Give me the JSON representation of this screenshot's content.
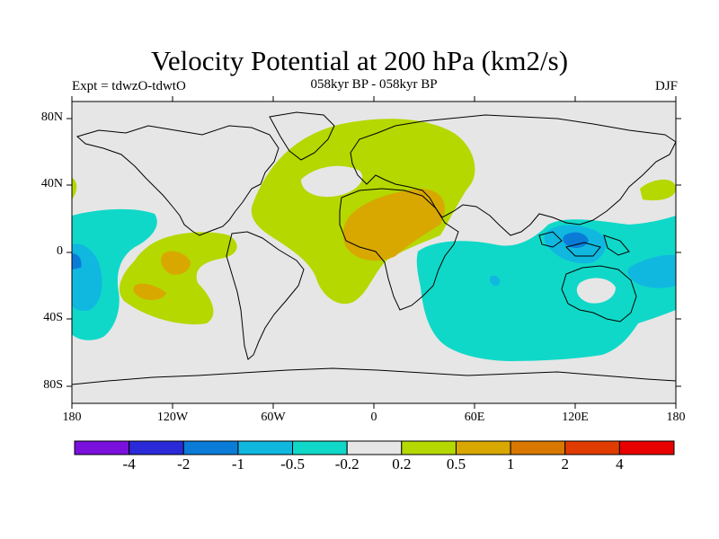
{
  "title": "Velocity Potential at 200 hPa (km2/s)",
  "subtitle_left": "Expt = tdwzO-tdwtO",
  "subtitle_center": "058kyr BP - 058kyr BP",
  "subtitle_right": "DJF",
  "map": {
    "lat_labels": [
      "80N",
      "40N",
      "0",
      "40S",
      "80S"
    ],
    "lon_labels": [
      "180",
      "120W",
      "60W",
      "0",
      "60E",
      "120E",
      "180"
    ]
  },
  "colorbar": {
    "labels": [
      "-4",
      "-2",
      "-1",
      "-0.5",
      "-0.2",
      "0.2",
      "0.5",
      "1",
      "2",
      "4"
    ],
    "colors": [
      "#7a10dc",
      "#2a2ad8",
      "#0a7cd8",
      "#10b8e0",
      "#10d8c8",
      "#e6e6e6",
      "#b4d800",
      "#d8a800",
      "#d87800",
      "#e03c00",
      "#e80000"
    ]
  },
  "legend_colors": {
    "neutral": "#e6e6e6",
    "pos_weak": "#b4d800",
    "pos_mid": "#d8a800",
    "pos_strong": "#d87800",
    "neg_weak": "#10d8c8",
    "neg_mid": "#10b8e0",
    "neg_strong": "#0a7cd8"
  }
}
